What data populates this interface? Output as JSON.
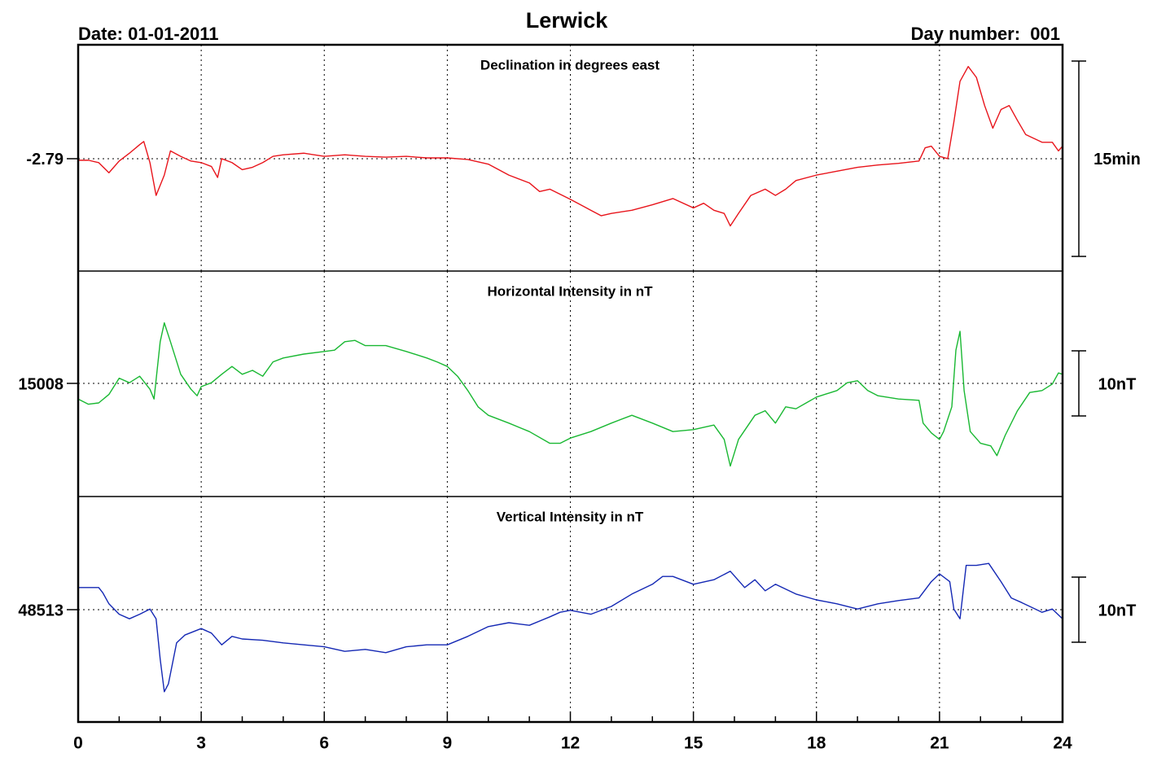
{
  "header": {
    "title": "Lerwick",
    "date": "Date: 01-01-2011",
    "day_number": "Day number:  001"
  },
  "chart_data": [
    {
      "type": "line",
      "title": "Declination in degrees east",
      "color": "#e8141b",
      "ylim": [
        -2.9338,
        -2.6442
      ],
      "yticks": [
        -2.79
      ],
      "scale_bar": {
        "label": "15min",
        "value": 0.25
      },
      "x": [
        0,
        0.25,
        0.5,
        0.75,
        1,
        1.25,
        1.5,
        1.6,
        1.75,
        1.9,
        2.1,
        2.25,
        2.5,
        2.75,
        3,
        3.25,
        3.4,
        3.5,
        3.75,
        4,
        4.25,
        4.5,
        4.75,
        5,
        5.5,
        6,
        6.5,
        7,
        7.5,
        8,
        8.5,
        9,
        9.5,
        10,
        10.5,
        11,
        11.25,
        11.5,
        12,
        12.5,
        12.75,
        13,
        13.5,
        14,
        14.5,
        15,
        15.25,
        15.5,
        15.75,
        15.9,
        16.1,
        16.4,
        16.75,
        17,
        17.25,
        17.5,
        18,
        18.5,
        19,
        19.5,
        20,
        20.5,
        20.65,
        20.8,
        21,
        21.2,
        21.35,
        21.5,
        21.7,
        21.9,
        22.1,
        22.3,
        22.5,
        22.7,
        22.9,
        23.1,
        23.5,
        23.75,
        23.9,
        24
      ],
      "values": [
        -2.792,
        -2.792,
        -2.795,
        -2.808,
        -2.793,
        -2.783,
        -2.772,
        -2.768,
        -2.795,
        -2.837,
        -2.811,
        -2.78,
        -2.787,
        -2.793,
        -2.795,
        -2.8,
        -2.814,
        -2.79,
        -2.795,
        -2.804,
        -2.801,
        -2.795,
        -2.787,
        -2.785,
        -2.783,
        -2.787,
        -2.785,
        -2.787,
        -2.788,
        -2.787,
        -2.789,
        -2.789,
        -2.791,
        -2.797,
        -2.811,
        -2.821,
        -2.832,
        -2.829,
        -2.842,
        -2.856,
        -2.863,
        -2.86,
        -2.856,
        -2.849,
        -2.841,
        -2.853,
        -2.847,
        -2.856,
        -2.86,
        -2.876,
        -2.86,
        -2.837,
        -2.829,
        -2.837,
        -2.829,
        -2.818,
        -2.811,
        -2.806,
        -2.801,
        -2.798,
        -2.796,
        -2.793,
        -2.776,
        -2.774,
        -2.787,
        -2.79,
        -2.743,
        -2.691,
        -2.672,
        -2.686,
        -2.722,
        -2.751,
        -2.727,
        -2.722,
        -2.741,
        -2.759,
        -2.769,
        -2.769,
        -2.78,
        -2.774
      ]
    },
    {
      "type": "line",
      "title": "Horizontal Intensity in nT",
      "color": "#19b832",
      "ylim": [
        14990.625,
        15025.25
      ],
      "yticks": [
        15008
      ],
      "scale_bar": {
        "label": "10nT",
        "value": 10
      },
      "x": [
        0,
        0.25,
        0.5,
        0.75,
        1,
        1.25,
        1.5,
        1.75,
        1.85,
        2,
        2.1,
        2.25,
        2.5,
        2.75,
        2.9,
        3,
        3.25,
        3.5,
        3.75,
        4,
        4.25,
        4.5,
        4.75,
        5,
        5.5,
        6,
        6.25,
        6.5,
        6.75,
        7,
        7.5,
        8,
        8.5,
        8.75,
        9,
        9.25,
        9.5,
        9.75,
        10,
        10.5,
        11,
        11.5,
        11.75,
        12,
        12.5,
        13,
        13.5,
        14,
        14.5,
        15,
        15.5,
        15.75,
        15.9,
        16.1,
        16.5,
        16.75,
        17,
        17.25,
        17.5,
        17.75,
        18,
        18.5,
        18.75,
        19,
        19.25,
        19.5,
        20,
        20.5,
        20.6,
        20.8,
        21,
        21.1,
        21.3,
        21.4,
        21.5,
        21.6,
        21.75,
        22,
        22.25,
        22.4,
        22.6,
        22.9,
        23.2,
        23.5,
        23.75,
        23.9,
        24
      ],
      "values": [
        15005.6,
        15004.8,
        15005.0,
        15006.3,
        15008.8,
        15008.1,
        15009.1,
        15007.1,
        15005.6,
        15014.4,
        15017.3,
        15014.4,
        15009.4,
        15007.1,
        15006.1,
        15007.5,
        15008.1,
        15009.4,
        15010.6,
        15009.4,
        15010.0,
        15009.1,
        15011.3,
        15011.9,
        15012.5,
        15012.9,
        15013.1,
        15014.4,
        15014.6,
        15013.8,
        15013.8,
        15012.9,
        15011.9,
        15011.3,
        15010.6,
        15009.1,
        15006.9,
        15004.4,
        15003.1,
        15001.9,
        15000.6,
        14998.8,
        14998.8,
        14999.6,
        15000.6,
        15001.9,
        15003.1,
        15001.9,
        15000.6,
        15000.9,
        15001.6,
        14999.4,
        14995.3,
        14999.4,
        15003.1,
        15003.8,
        15001.9,
        15004.4,
        15004.1,
        15005.0,
        15005.9,
        15006.9,
        15008.1,
        15008.4,
        15006.9,
        15006.1,
        15005.6,
        15005.4,
        15001.9,
        15000.4,
        14999.4,
        15000.6,
        15004.4,
        15013.1,
        15016.0,
        15006.9,
        15000.6,
        14998.8,
        14998.4,
        14996.9,
        15000.0,
        15003.8,
        15006.6,
        15006.9,
        15007.9,
        15009.6,
        15009.4
      ]
    },
    {
      "type": "line",
      "title": "Vertical Intensity in nT",
      "color": "#1428b4",
      "ylim": [
        48495.75,
        48530.375
      ],
      "yticks": [
        48513
      ],
      "scale_bar": {
        "label": "10nT",
        "value": 10
      },
      "xlim": [
        0,
        24
      ],
      "xticks": [
        0,
        3,
        6,
        9,
        12,
        15,
        18,
        21,
        24
      ],
      "xminorticks": [
        1,
        2,
        4,
        5,
        7,
        8,
        10,
        11,
        13,
        14,
        16,
        17,
        19,
        20,
        22,
        23
      ],
      "x": [
        0,
        0.5,
        0.6,
        0.75,
        1,
        1.25,
        1.5,
        1.75,
        1.9,
        2,
        2.1,
        2.2,
        2.4,
        2.6,
        3,
        3.25,
        3.5,
        3.75,
        4,
        4.5,
        5,
        5.5,
        6,
        6.5,
        7,
        7.5,
        8,
        8.5,
        9,
        9.5,
        10,
        10.5,
        11,
        11.5,
        11.75,
        12,
        12.5,
        13,
        13.5,
        14,
        14.25,
        14.5,
        15,
        15.5,
        15.9,
        16.25,
        16.5,
        16.75,
        17,
        17.5,
        18,
        18.5,
        19,
        19.5,
        20,
        20.5,
        20.8,
        21,
        21.25,
        21.35,
        21.5,
        21.65,
        21.9,
        22.2,
        22.5,
        22.75,
        23,
        23.5,
        23.75,
        24
      ],
      "values": [
        48516.4,
        48516.4,
        48515.6,
        48513.9,
        48512.3,
        48511.6,
        48512.3,
        48513.1,
        48511.6,
        48505.4,
        48500.4,
        48501.6,
        48507.9,
        48509.1,
        48510.1,
        48509.4,
        48507.6,
        48508.9,
        48508.5,
        48508.3,
        48507.9,
        48507.6,
        48507.3,
        48506.6,
        48506.9,
        48506.4,
        48507.3,
        48507.6,
        48507.6,
        48508.9,
        48510.4,
        48511.0,
        48510.6,
        48511.9,
        48512.6,
        48512.9,
        48512.3,
        48513.5,
        48515.4,
        48516.9,
        48518.1,
        48518.1,
        48516.9,
        48517.6,
        48518.9,
        48516.4,
        48517.6,
        48515.9,
        48516.9,
        48515.4,
        48514.5,
        48513.9,
        48513.1,
        48513.9,
        48514.4,
        48514.8,
        48517.3,
        48518.5,
        48517.3,
        48513.1,
        48511.6,
        48519.8,
        48519.8,
        48520.1,
        48517.3,
        48514.8,
        48514.1,
        48512.6,
        48513.1,
        48511.6
      ]
    }
  ]
}
